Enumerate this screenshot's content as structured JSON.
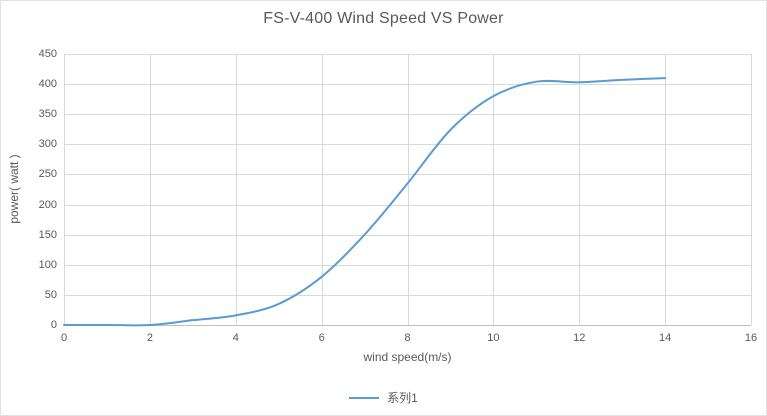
{
  "chart_title": "FS-V-400 Wind Speed VS Power",
  "chart_data": {
    "type": "line",
    "title": "FS-V-400 Wind Speed VS Power",
    "xlabel": "wind speed(m/s)",
    "ylabel": "power( watt )",
    "xlim": [
      0,
      16
    ],
    "ylim": [
      0,
      450
    ],
    "x_ticks": [
      0,
      2,
      4,
      6,
      8,
      10,
      12,
      14,
      16
    ],
    "y_ticks": [
      0,
      50,
      100,
      150,
      200,
      250,
      300,
      350,
      400,
      450
    ],
    "grid": true,
    "smooth": true,
    "legend": {
      "position": "bottom",
      "entries": [
        {
          "label": "系列1",
          "color": "#5b9bd5"
        }
      ]
    },
    "series": [
      {
        "name": "系列1",
        "color": "#5b9bd5",
        "x": [
          0,
          1,
          2,
          3,
          4,
          5,
          6,
          7,
          8,
          9,
          10,
          11,
          12,
          13,
          14
        ],
        "values": [
          0,
          0,
          0,
          8,
          16,
          35,
          80,
          150,
          235,
          324,
          380,
          404,
          403,
          407,
          410
        ]
      }
    ]
  },
  "colors": {
    "series_line": "#5b9bd5",
    "gridline": "#d9d9d9",
    "axis_line": "#bfbfbf",
    "text": "#595959",
    "frame_border": "#e2e2e2",
    "background": "#ffffff"
  }
}
